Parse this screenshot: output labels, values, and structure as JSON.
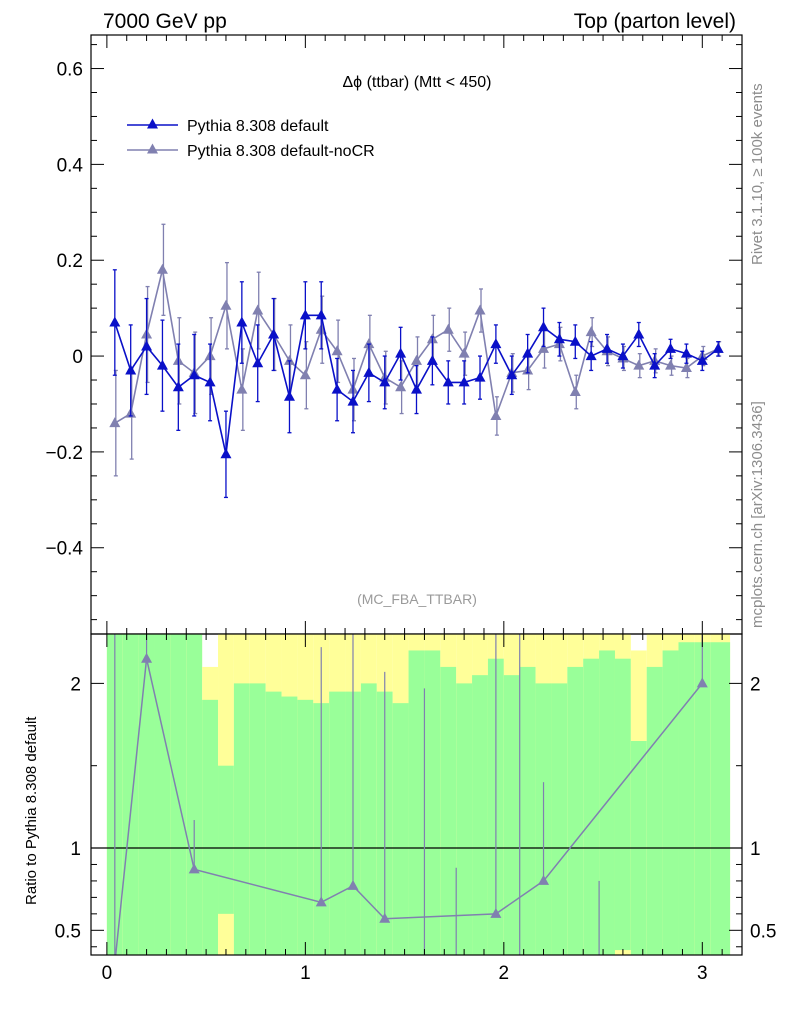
{
  "header": {
    "left": "7000 GeV pp",
    "right": "Top (parton level)"
  },
  "side_labels": {
    "rivet": "Rivet 3.1.10, ≥ 100k events",
    "mcplots": "mcplots.cern.ch [arXiv:1306.3436]"
  },
  "colors": {
    "default": "#0a10c8",
    "nocr": "#8080b0",
    "band_green": "#99ff99",
    "band_yellow": "#ffff99"
  },
  "chart_data": [
    {
      "type": "line",
      "title": "Δϕ (ttbar) (Mtt < 450)",
      "annotation": "(MC_FBA_TTBAR)",
      "xlim": [
        -0.08,
        3.2
      ],
      "ylim": [
        -0.58,
        0.67
      ],
      "yticks": [
        -0.4,
        -0.2,
        0,
        0.2,
        0.4,
        0.6
      ],
      "ytick_labels": [
        "−0.4",
        "−0.2",
        "0",
        "0.2",
        "0.4",
        "0.6"
      ],
      "legend_position": "top-left",
      "x": [
        0.04,
        0.12,
        0.2,
        0.28,
        0.36,
        0.44,
        0.52,
        0.6,
        0.68,
        0.76,
        0.84,
        0.92,
        1.0,
        1.08,
        1.16,
        1.24,
        1.32,
        1.4,
        1.48,
        1.56,
        1.64,
        1.72,
        1.8,
        1.88,
        1.96,
        2.04,
        2.12,
        2.2,
        2.28,
        2.36,
        2.44,
        2.52,
        2.6,
        2.68,
        2.76,
        2.84,
        2.92,
        3.0,
        3.08
      ],
      "series": [
        {
          "name": "Pythia 8.308 default",
          "values": [
            0.07,
            -0.03,
            0.02,
            -0.02,
            -0.065,
            -0.04,
            -0.055,
            -0.205,
            0.07,
            -0.015,
            0.045,
            -0.085,
            0.085,
            0.085,
            -0.07,
            -0.095,
            -0.035,
            -0.055,
            0.005,
            -0.07,
            -0.01,
            -0.055,
            -0.055,
            -0.045,
            0.025,
            -0.04,
            0.005,
            0.06,
            0.035,
            0.03,
            0.0,
            0.015,
            0.0,
            0.045,
            -0.02,
            0.015,
            0.005,
            -0.01,
            0.015
          ],
          "errors": [
            0.11,
            0.095,
            0.1,
            0.095,
            0.09,
            0.085,
            0.08,
            0.09,
            0.085,
            0.08,
            0.075,
            0.075,
            0.07,
            0.07,
            0.065,
            0.065,
            0.06,
            0.055,
            0.055,
            0.05,
            0.05,
            0.045,
            0.045,
            0.045,
            0.04,
            0.04,
            0.04,
            0.04,
            0.035,
            0.035,
            0.03,
            0.03,
            0.025,
            0.025,
            0.025,
            0.02,
            0.02,
            0.02,
            0.015
          ]
        },
        {
          "name": "Pythia 8.308 default-noCR",
          "values": [
            -0.14,
            -0.12,
            0.045,
            0.18,
            -0.01,
            -0.035,
            0.0,
            0.105,
            -0.07,
            0.095,
            0.045,
            -0.01,
            -0.04,
            0.055,
            0.01,
            -0.07,
            0.025,
            -0.045,
            -0.065,
            -0.01,
            0.035,
            0.055,
            0.005,
            0.095,
            -0.125,
            -0.035,
            -0.03,
            0.015,
            0.025,
            -0.075,
            0.05,
            0.01,
            -0.005,
            -0.02,
            -0.01,
            -0.02,
            -0.025,
            0.0,
            0.015
          ]
        }
      ]
    },
    {
      "type": "line",
      "ylabel": "Ratio to Pythia 8.308 default",
      "xlim": [
        -0.08,
        3.2
      ],
      "ylim": [
        0.35,
        2.3
      ],
      "yticks": [
        0.5,
        1,
        2
      ],
      "ytick_labels": [
        "0.5",
        "1",
        "2"
      ],
      "xticks": [
        0,
        1,
        2,
        3
      ],
      "xtick_labels": [
        "0",
        "1",
        "2",
        "3"
      ],
      "band_edges": [
        0.0,
        0.08,
        0.16,
        0.24,
        0.32,
        0.4,
        0.48,
        0.56,
        0.64,
        0.72,
        0.8,
        0.88,
        0.96,
        1.04,
        1.12,
        1.2,
        1.28,
        1.36,
        1.44,
        1.52,
        1.6,
        1.68,
        1.76,
        1.84,
        1.92,
        2.0,
        2.08,
        2.16,
        2.24,
        2.32,
        2.4,
        2.48,
        2.56,
        2.64,
        2.72,
        2.8,
        2.88,
        2.96,
        3.04,
        3.14
      ],
      "band_green_upper": [
        2.6,
        2.6,
        2.6,
        2.6,
        2.6,
        2.6,
        1.9,
        1.5,
        2.0,
        2.0,
        1.95,
        1.92,
        1.9,
        1.88,
        1.95,
        1.95,
        2.0,
        1.95,
        1.88,
        2.2,
        2.2,
        2.1,
        2.0,
        2.05,
        2.15,
        2.05,
        2.1,
        2.0,
        2.0,
        2.1,
        2.15,
        2.2,
        2.15,
        1.65,
        2.1,
        2.2,
        2.25,
        2.25,
        2.25,
        2.25
      ],
      "band_yellow_upper": [
        2.6,
        2.6,
        2.6,
        2.6,
        2.6,
        2.6,
        2.1,
        2.6,
        2.6,
        2.6,
        2.6,
        2.6,
        2.6,
        2.6,
        2.6,
        2.3,
        2.6,
        2.6,
        2.6,
        2.6,
        2.6,
        2.6,
        2.6,
        2.6,
        2.6,
        2.6,
        2.6,
        2.6,
        2.6,
        2.6,
        2.6,
        2.6,
        2.6,
        2.2,
        2.6,
        2.6,
        2.6,
        2.6,
        2.6,
        2.6
      ],
      "band_green_lower": [
        0.3,
        0.3,
        0.3,
        0.3,
        0.3,
        0.3,
        0.3,
        0.6,
        0.3,
        0.3,
        0.3,
        0.3,
        0.3,
        0.3,
        0.3,
        0.3,
        0.3,
        0.3,
        0.3,
        0.3,
        0.3,
        0.3,
        0.3,
        0.3,
        0.3,
        0.3,
        0.3,
        0.3,
        0.3,
        0.3,
        0.3,
        0.3,
        0.38,
        0.3,
        0.3,
        0.3,
        0.3,
        0.3,
        0.3,
        0.3
      ],
      "band_yellow_lower": [
        0.3,
        0.3,
        0.3,
        0.3,
        0.3,
        0.3,
        0.3,
        0.3,
        0.3,
        0.3,
        0.3,
        0.3,
        0.3,
        0.3,
        0.3,
        0.3,
        0.3,
        0.3,
        0.3,
        0.3,
        0.3,
        0.3,
        0.3,
        0.3,
        0.3,
        0.3,
        0.3,
        0.3,
        0.3,
        0.3,
        0.3,
        0.3,
        0.3,
        0.3,
        0.3,
        0.3,
        0.3,
        0.3,
        0.3,
        0.3
      ],
      "series": [
        {
          "name": "Pythia 8.308 default-noCR",
          "x": [
            0.04,
            0.2,
            0.44,
            1.08,
            1.24,
            1.4,
            1.96,
            2.2,
            3.0
          ],
          "values": [
            0.3,
            2.15,
            0.87,
            0.67,
            0.77,
            0.57,
            0.6,
            0.8,
            2.0
          ],
          "err_up": [
            2.6,
            0.35,
            0.3,
            1.55,
            1.55,
            1.5,
            1.9,
            0.6,
            0.35
          ]
        }
      ]
    }
  ]
}
